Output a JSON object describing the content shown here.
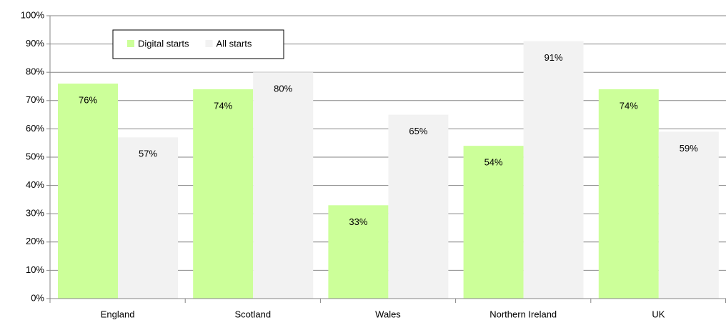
{
  "chart_data": {
    "type": "bar",
    "categories": [
      "England",
      "Scotland",
      "Wales",
      "Northern Ireland",
      "UK"
    ],
    "series": [
      {
        "name": "Digital starts",
        "color": "#ccff99",
        "values": [
          76,
          74,
          33,
          54,
          74
        ],
        "value_labels": [
          "76%",
          "74%",
          "33%",
          "54%",
          "74%"
        ]
      },
      {
        "name": "All starts",
        "color": "#f2f2f2",
        "values": [
          57,
          80,
          65,
          91,
          59
        ],
        "value_labels": [
          "57%",
          "80%",
          "65%",
          "91%",
          "59%"
        ]
      }
    ],
    "ylim": [
      0,
      100
    ],
    "yticks": [
      {
        "value": 0,
        "label": "0%"
      },
      {
        "value": 10,
        "label": "10%"
      },
      {
        "value": 20,
        "label": "20%"
      },
      {
        "value": 30,
        "label": "30%"
      },
      {
        "value": 40,
        "label": "40%"
      },
      {
        "value": 50,
        "label": "50%"
      },
      {
        "value": 60,
        "label": "60%"
      },
      {
        "value": 70,
        "label": "70%"
      },
      {
        "value": 80,
        "label": "80%"
      },
      {
        "value": 90,
        "label": "90%"
      },
      {
        "value": 100,
        "label": "100%"
      }
    ],
    "grid": true
  }
}
